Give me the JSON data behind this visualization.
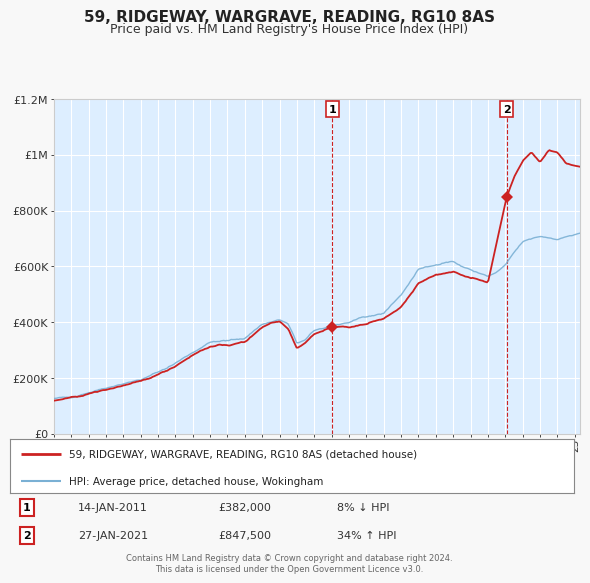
{
  "title": "59, RIDGEWAY, WARGRAVE, READING, RG10 8AS",
  "subtitle": "Price paid vs. HM Land Registry's House Price Index (HPI)",
  "title_fontsize": 11,
  "subtitle_fontsize": 9,
  "background_color": "#f8f8f8",
  "plot_bg_color": "#ddeeff",
  "grid_color": "#ffffff",
  "hpi_color": "#7ab0d4",
  "price_color": "#cc2222",
  "ylim": [
    0,
    1200000
  ],
  "yticks": [
    0,
    200000,
    400000,
    600000,
    800000,
    1000000,
    1200000
  ],
  "ytick_labels": [
    "£0",
    "£200K",
    "£400K",
    "£600K",
    "£800K",
    "£1M",
    "£1.2M"
  ],
  "xmin": 1995.0,
  "xmax": 2025.3,
  "sale1_x": 2011.04,
  "sale1_y": 382000,
  "sale1_label": "1",
  "sale2_x": 2021.07,
  "sale2_y": 847500,
  "sale2_label": "2",
  "legend_line1": "59, RIDGEWAY, WARGRAVE, READING, RG10 8AS (detached house)",
  "legend_line2": "HPI: Average price, detached house, Wokingham",
  "annotation1_date": "14-JAN-2011",
  "annotation1_price": "£382,000",
  "annotation1_hpi": "8% ↓ HPI",
  "annotation2_date": "27-JAN-2021",
  "annotation2_price": "£847,500",
  "annotation2_hpi": "34% ↑ HPI",
  "footer": "Contains HM Land Registry data © Crown copyright and database right 2024.\nThis data is licensed under the Open Government Licence v3.0."
}
